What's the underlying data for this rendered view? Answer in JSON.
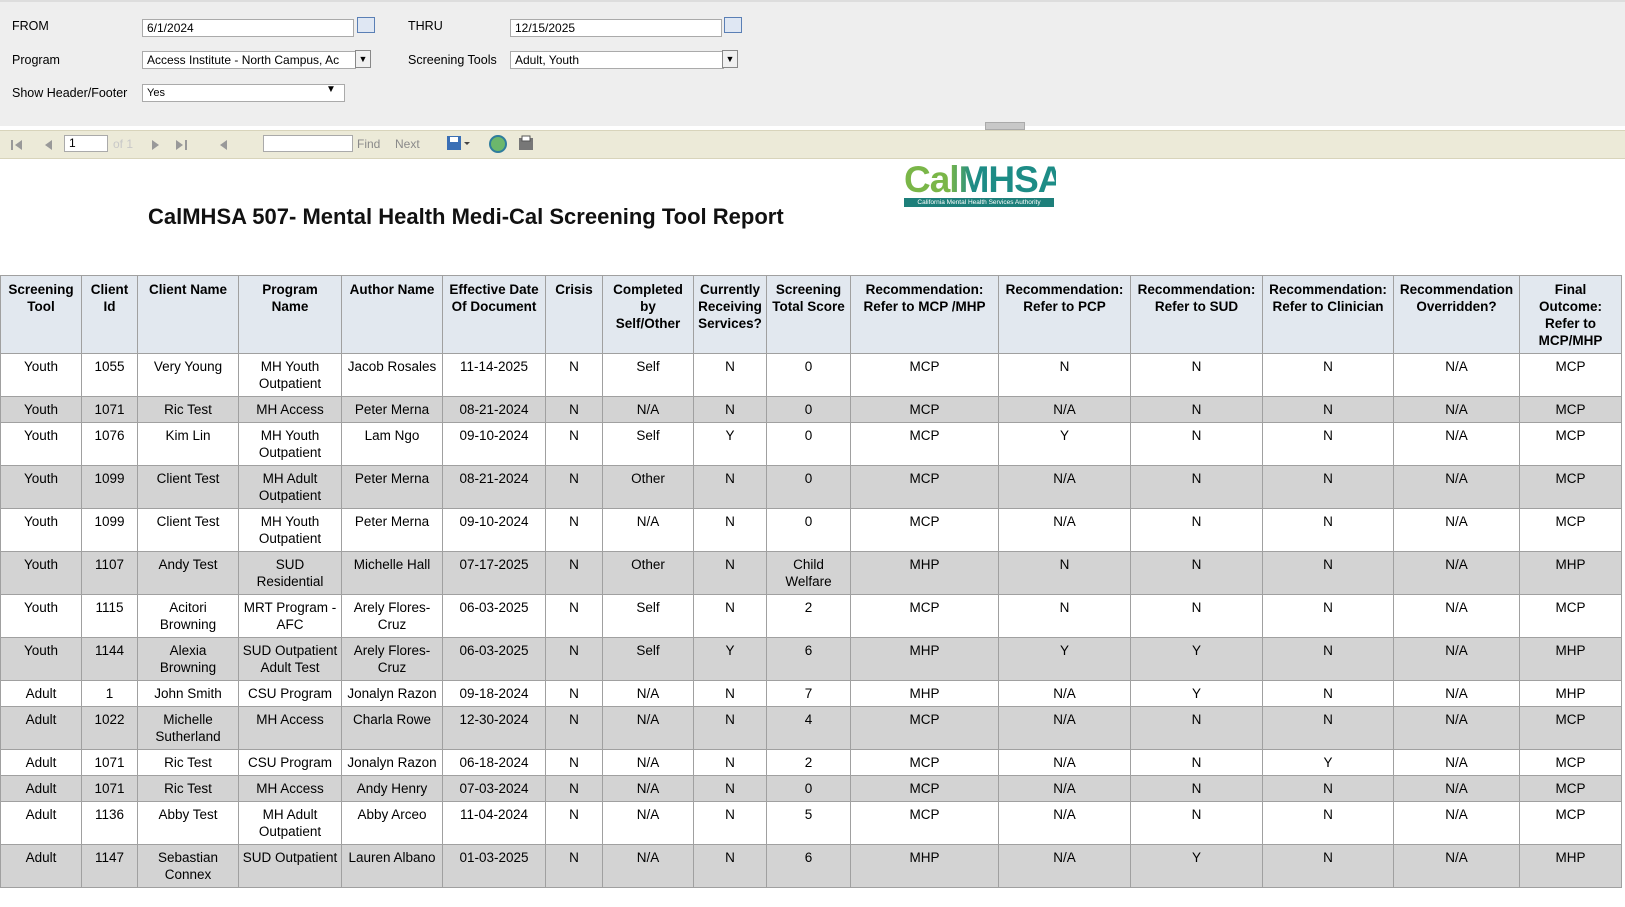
{
  "params": {
    "from_label": "FROM",
    "from_value": "6/1/2024",
    "thru_label": "THRU",
    "thru_value": "12/15/2025",
    "program_label": "Program",
    "program_value": "Access Institute - North Campus, Ac",
    "tools_label": "Screening Tools",
    "tools_value": "Adult, Youth",
    "header_label": "Show Header/Footer",
    "header_value": "Yes"
  },
  "toolbar": {
    "page": "1",
    "of": "of 1",
    "find": "Find",
    "next": "Next"
  },
  "report": {
    "logo": "CalMHSA",
    "logo_sub": "California Mental Health Services Authority",
    "title": "CalMHSA 507- Mental Health Medi-Cal Screening Tool Report"
  },
  "table": {
    "columns": [
      "Screening Tool",
      "Client Id",
      "Client Name",
      "Program Name",
      "Author Name",
      "Effective Date Of Document",
      "Crisis",
      "Completed by Self/Other",
      "Currently Receiving Services?",
      "Screening Total Score",
      "Recommendation: Refer to MCP /MHP",
      "Recommendation: Refer to PCP",
      "Recommendation: Refer to SUD",
      "Recommendation: Refer to Clinician",
      "Recommendation Overridden?",
      "Final Outcome: Refer to MCP/MHP"
    ],
    "rows": [
      [
        "Youth",
        "1055",
        "Very Young",
        "MH Youth Outpatient",
        "Jacob Rosales",
        "11-14-2025",
        "N",
        "Self",
        "N",
        "0",
        "MCP",
        "N",
        "N",
        "N",
        "N/A",
        "MCP"
      ],
      [
        "Youth",
        "1071",
        "Ric Test",
        "MH Access",
        "Peter Merna",
        "08-21-2024",
        "N",
        "N/A",
        "N",
        "0",
        "MCP",
        "N/A",
        "N",
        "N",
        "N/A",
        "MCP"
      ],
      [
        "Youth",
        "1076",
        "Kim Lin",
        "MH Youth Outpatient",
        "Lam Ngo",
        "09-10-2024",
        "N",
        "Self",
        "Y",
        "0",
        "MCP",
        "Y",
        "N",
        "N",
        "N/A",
        "MCP"
      ],
      [
        "Youth",
        "1099",
        "Client Test",
        "MH Adult Outpatient",
        "Peter Merna",
        "08-21-2024",
        "N",
        "Other",
        "N",
        "0",
        "MCP",
        "N/A",
        "N",
        "N",
        "N/A",
        "MCP"
      ],
      [
        "Youth",
        "1099",
        "Client Test",
        "MH Youth Outpatient",
        "Peter Merna",
        "09-10-2024",
        "N",
        "N/A",
        "N",
        "0",
        "MCP",
        "N/A",
        "N",
        "N",
        "N/A",
        "MCP"
      ],
      [
        "Youth",
        "1107",
        "Andy Test",
        "SUD Residential",
        "Michelle Hall",
        "07-17-2025",
        "N",
        "Other",
        "N",
        "Child Welfare",
        "MHP",
        "N",
        "N",
        "N",
        "N/A",
        "MHP"
      ],
      [
        "Youth",
        "1115",
        "Acitori Browning",
        "MRT Program - AFC",
        "Arely Flores-Cruz",
        "06-03-2025",
        "N",
        "Self",
        "N",
        "2",
        "MCP",
        "N",
        "N",
        "N",
        "N/A",
        "MCP"
      ],
      [
        "Youth",
        "1144",
        "Alexia Browning",
        "SUD Outpatient Adult Test",
        "Arely Flores-Cruz",
        "06-03-2025",
        "N",
        "Self",
        "Y",
        "6",
        "MHP",
        "Y",
        "Y",
        "N",
        "N/A",
        "MHP"
      ],
      [
        "Adult",
        "1",
        "John Smith",
        "CSU Program",
        "Jonalyn Razon",
        "09-18-2024",
        "N",
        "N/A",
        "N",
        "7",
        "MHP",
        "N/A",
        "Y",
        "N",
        "N/A",
        "MHP"
      ],
      [
        "Adult",
        "1022",
        "Michelle Sutherland",
        "MH Access",
        "Charla Rowe",
        "12-30-2024",
        "N",
        "N/A",
        "N",
        "4",
        "MCP",
        "N/A",
        "N",
        "N",
        "N/A",
        "MCP"
      ],
      [
        "Adult",
        "1071",
        "Ric Test",
        "CSU Program",
        "Jonalyn Razon",
        "06-18-2024",
        "N",
        "N/A",
        "N",
        "2",
        "MCP",
        "N/A",
        "N",
        "Y",
        "N/A",
        "MCP"
      ],
      [
        "Adult",
        "1071",
        "Ric Test",
        "MH Access",
        "Andy Henry",
        "07-03-2024",
        "N",
        "N/A",
        "N",
        "0",
        "MCP",
        "N/A",
        "N",
        "N",
        "N/A",
        "MCP"
      ],
      [
        "Adult",
        "1136",
        "Abby Test",
        "MH Adult Outpatient",
        "Abby Arceo",
        "11-04-2024",
        "N",
        "N/A",
        "N",
        "5",
        "MCP",
        "N/A",
        "N",
        "N",
        "N/A",
        "MCP"
      ],
      [
        "Adult",
        "1147",
        "Sebastian Connex",
        "SUD Outpatient",
        "Lauren Albano",
        "01-03-2025",
        "N",
        "N/A",
        "N",
        "6",
        "MHP",
        "N/A",
        "Y",
        "N",
        "N/A",
        "MHP"
      ]
    ]
  }
}
